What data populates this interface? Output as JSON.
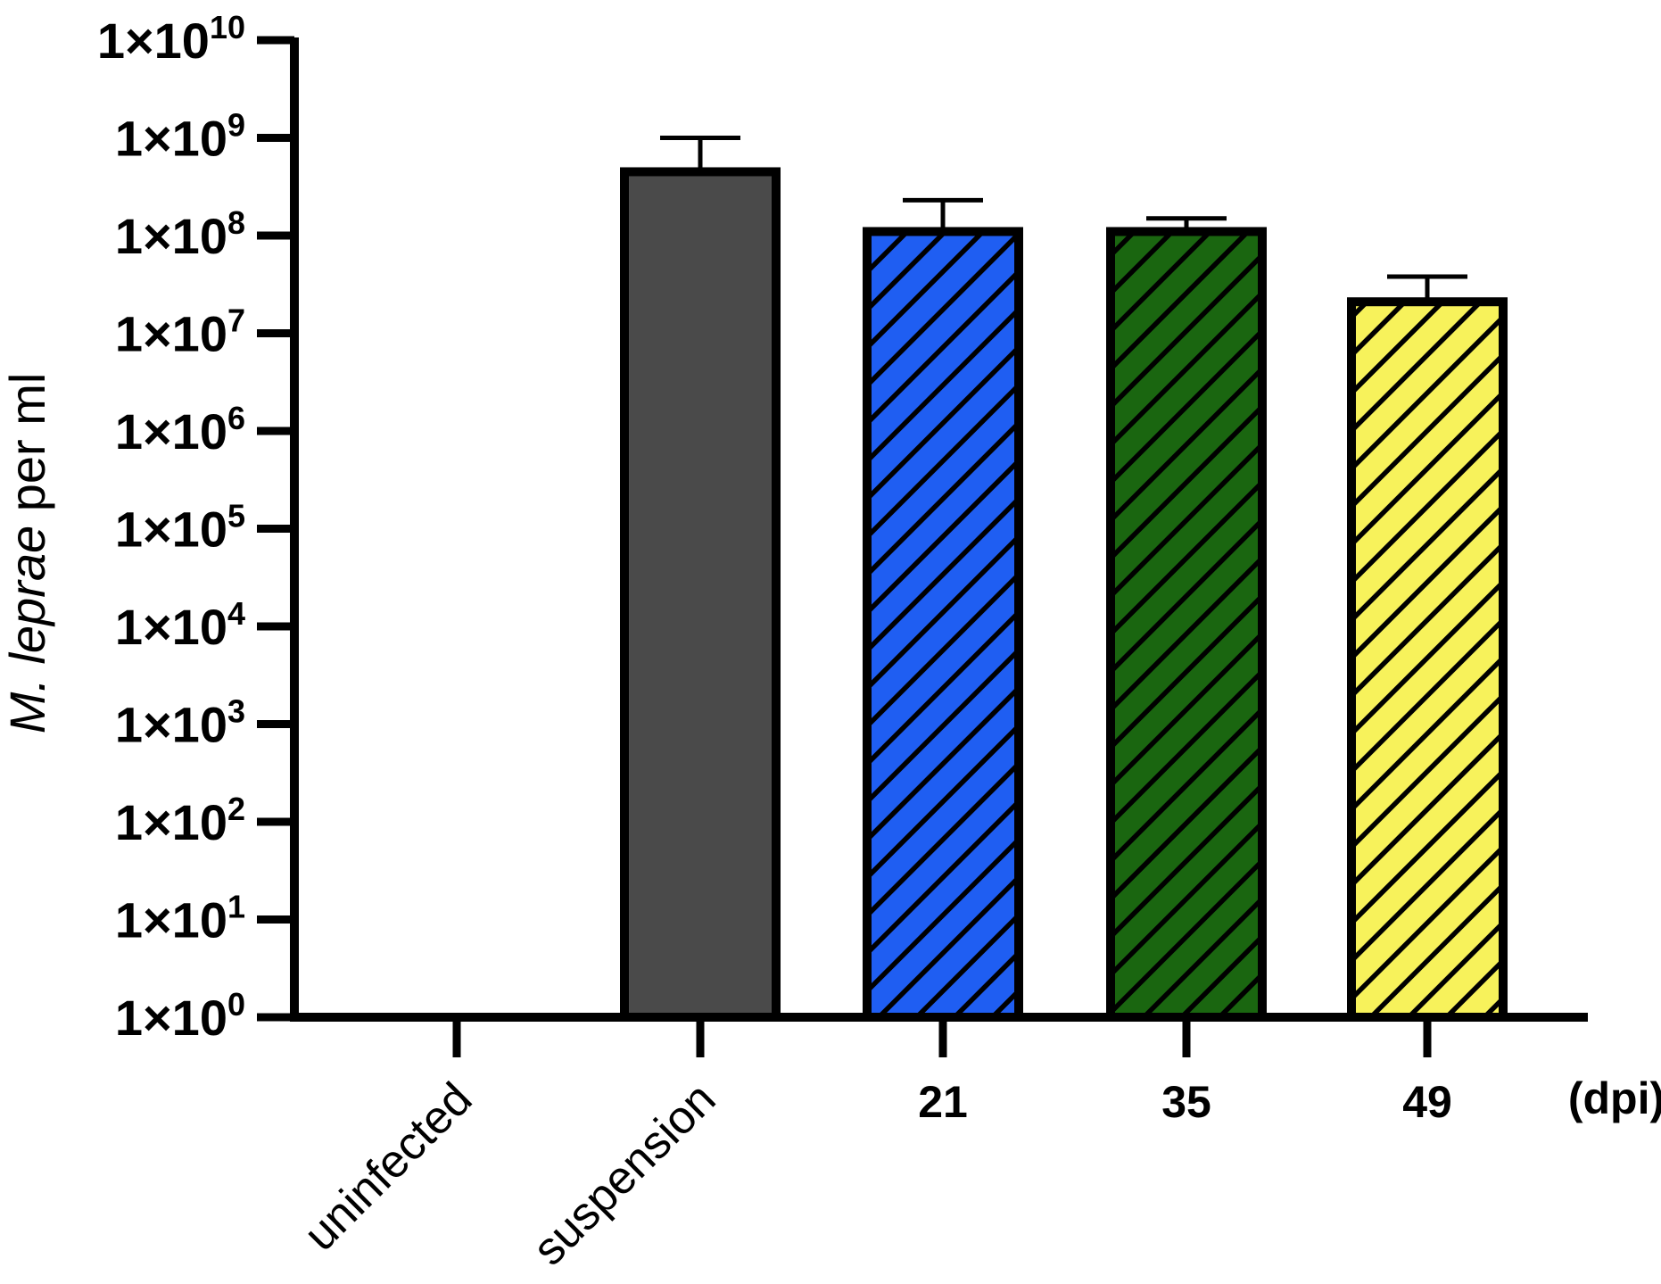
{
  "chart_data": {
    "type": "bar",
    "ylabel_italic": "M. leprae",
    "ylabel_rest": " per ml",
    "xlabel": "(dpi)",
    "yscale": "log",
    "ylim": [
      1,
      10000000000
    ],
    "y_ticks": [
      {
        "value": 1,
        "base": "1×10",
        "exp": "0"
      },
      {
        "value": 10,
        "base": "1×10",
        "exp": "1"
      },
      {
        "value": 100,
        "base": "1×10",
        "exp": "2"
      },
      {
        "value": 1000,
        "base": "1×10",
        "exp": "3"
      },
      {
        "value": 10000,
        "base": "1×10",
        "exp": "4"
      },
      {
        "value": 100000,
        "base": "1×10",
        "exp": "5"
      },
      {
        "value": 1000000,
        "base": "1×10",
        "exp": "6"
      },
      {
        "value": 10000000,
        "base": "1×10",
        "exp": "7"
      },
      {
        "value": 100000000,
        "base": "1×10",
        "exp": "8"
      },
      {
        "value": 1000000000,
        "base": "1×10",
        "exp": "9"
      },
      {
        "value": 10000000000,
        "base": "1×10",
        "exp": "10"
      }
    ],
    "categories": [
      "uninfected",
      "suspension",
      "21",
      "35",
      "49"
    ],
    "values": [
      1,
      450000000,
      110000000,
      110000000,
      21000000
    ],
    "error_upper": [
      null,
      1000000000,
      230000000,
      150000000,
      38000000
    ],
    "bar_colors": [
      null,
      "#4a4a4a",
      "#1f5ef2",
      "#1a6610",
      "#f7f25b"
    ],
    "bar_hatched": [
      false,
      false,
      true,
      true,
      true
    ],
    "grid": false,
    "legend": "none"
  }
}
